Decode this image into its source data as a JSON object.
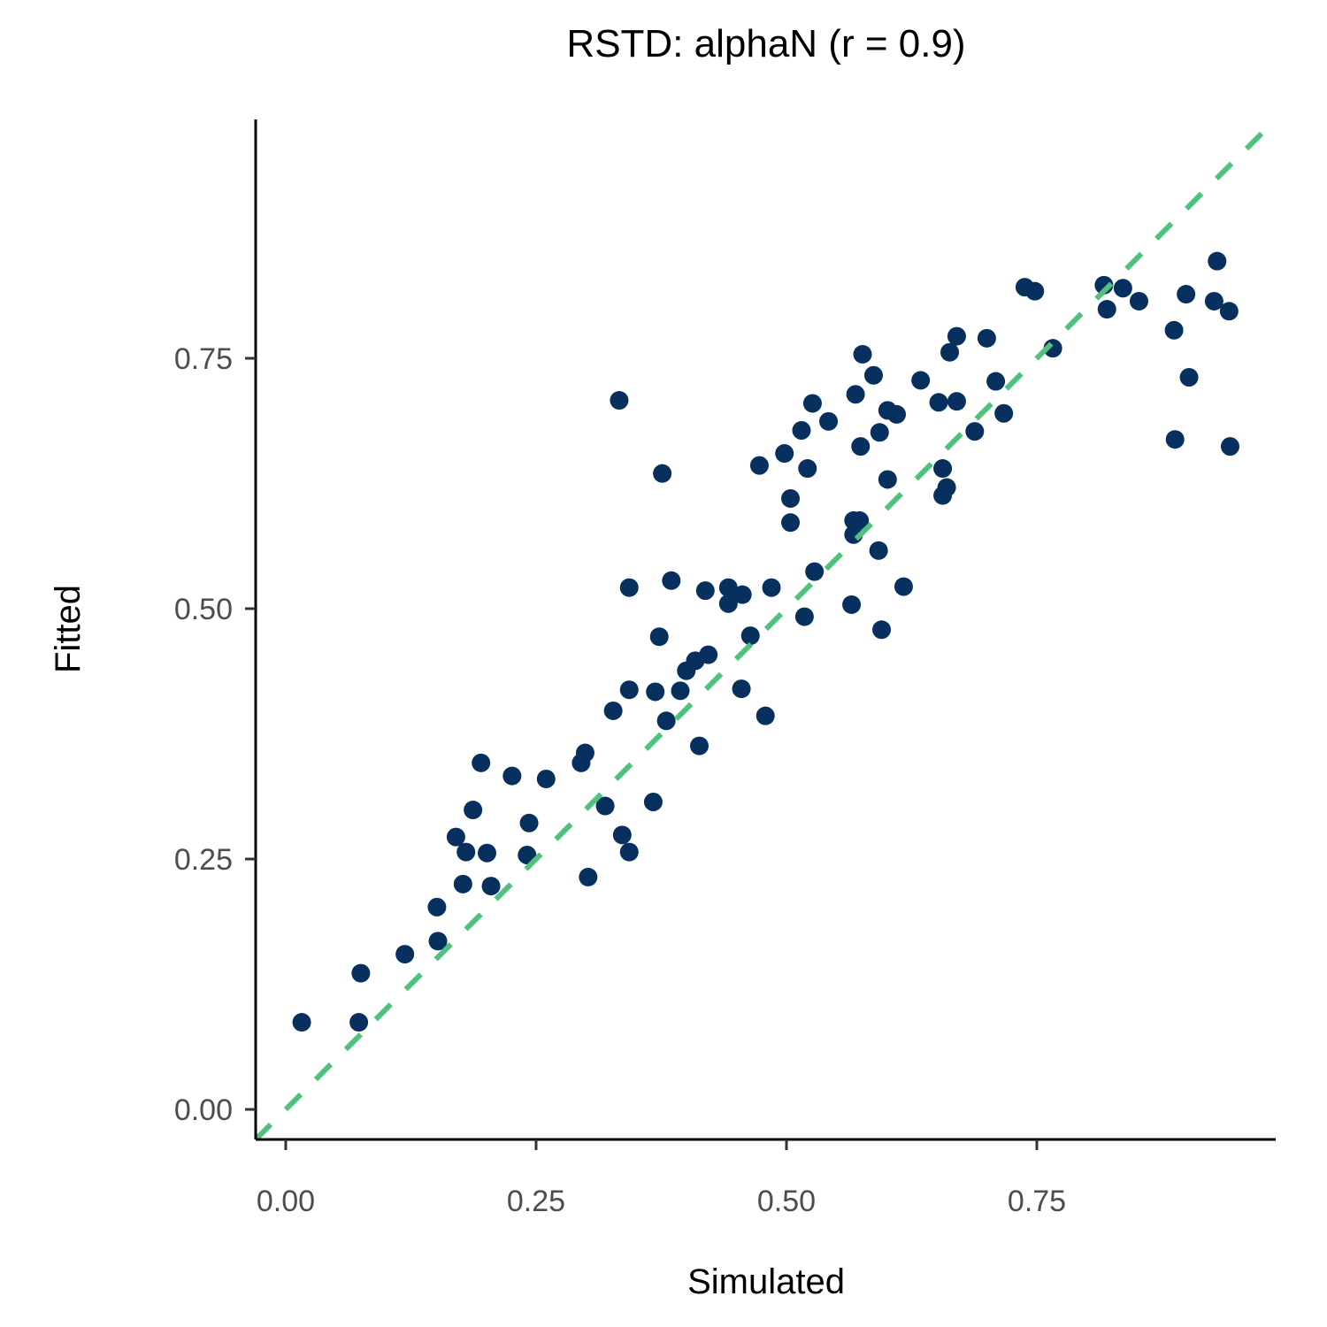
{
  "chart_data": {
    "type": "scatter",
    "title": "RSTD: alphaN (r = 0.9)",
    "xlabel": "Simulated",
    "ylabel": "Fitted",
    "xlim": [
      -0.03,
      0.9885
    ],
    "ylim": [
      -0.03,
      0.9885
    ],
    "x_ticks": [
      "0.00",
      "0.25",
      "0.50",
      "0.75"
    ],
    "y_ticks": [
      "0.00",
      "0.25",
      "0.50",
      "0.75"
    ],
    "x_tick_values": [
      0,
      0.25,
      0.5,
      0.75
    ],
    "y_tick_values": [
      0,
      0.25,
      0.5,
      0.75
    ],
    "grid": false,
    "legend": "none",
    "point_color": "#08305e",
    "reference_line": {
      "type": "identity",
      "style": "dashed",
      "color": "#52c07f"
    },
    "points": [
      [
        0.016,
        0.087
      ],
      [
        0.073,
        0.087
      ],
      [
        0.075,
        0.136
      ],
      [
        0.119,
        0.155
      ],
      [
        0.152,
        0.168
      ],
      [
        0.151,
        0.202
      ],
      [
        0.177,
        0.225
      ],
      [
        0.205,
        0.223
      ],
      [
        0.17,
        0.272
      ],
      [
        0.18,
        0.257
      ],
      [
        0.201,
        0.256
      ],
      [
        0.187,
        0.299
      ],
      [
        0.195,
        0.346
      ],
      [
        0.226,
        0.333
      ],
      [
        0.243,
        0.286
      ],
      [
        0.241,
        0.254
      ],
      [
        0.26,
        0.33
      ],
      [
        0.295,
        0.346
      ],
      [
        0.299,
        0.356
      ],
      [
        0.302,
        0.232
      ],
      [
        0.319,
        0.303
      ],
      [
        0.327,
        0.398
      ],
      [
        0.336,
        0.274
      ],
      [
        0.343,
        0.257
      ],
      [
        0.343,
        0.419
      ],
      [
        0.367,
        0.307
      ],
      [
        0.369,
        0.417
      ],
      [
        0.343,
        0.521
      ],
      [
        0.333,
        0.708
      ],
      [
        0.376,
        0.635
      ],
      [
        0.373,
        0.472
      ],
      [
        0.38,
        0.388
      ],
      [
        0.385,
        0.528
      ],
      [
        0.394,
        0.418
      ],
      [
        0.4,
        0.438
      ],
      [
        0.409,
        0.448
      ],
      [
        0.413,
        0.363
      ],
      [
        0.422,
        0.454
      ],
      [
        0.419,
        0.518
      ],
      [
        0.442,
        0.521
      ],
      [
        0.442,
        0.505
      ],
      [
        0.456,
        0.514
      ],
      [
        0.455,
        0.42
      ],
      [
        0.464,
        0.473
      ],
      [
        0.479,
        0.393
      ],
      [
        0.473,
        0.643
      ],
      [
        0.485,
        0.521
      ],
      [
        0.498,
        0.655
      ],
      [
        0.504,
        0.61
      ],
      [
        0.504,
        0.586
      ],
      [
        0.515,
        0.678
      ],
      [
        0.518,
        0.492
      ],
      [
        0.521,
        0.64
      ],
      [
        0.526,
        0.705
      ],
      [
        0.528,
        0.537
      ],
      [
        0.542,
        0.687
      ],
      [
        0.565,
        0.504
      ],
      [
        0.569,
        0.714
      ],
      [
        0.567,
        0.588
      ],
      [
        0.567,
        0.574
      ],
      [
        0.573,
        0.588
      ],
      [
        0.576,
        0.754
      ],
      [
        0.574,
        0.662
      ],
      [
        0.587,
        0.733
      ],
      [
        0.592,
        0.558
      ],
      [
        0.593,
        0.676
      ],
      [
        0.595,
        0.479
      ],
      [
        0.601,
        0.629
      ],
      [
        0.601,
        0.698
      ],
      [
        0.61,
        0.694
      ],
      [
        0.617,
        0.522
      ],
      [
        0.634,
        0.728
      ],
      [
        0.652,
        0.706
      ],
      [
        0.656,
        0.64
      ],
      [
        0.656,
        0.613
      ],
      [
        0.66,
        0.621
      ],
      [
        0.663,
        0.756
      ],
      [
        0.67,
        0.707
      ],
      [
        0.67,
        0.772
      ],
      [
        0.688,
        0.677
      ],
      [
        0.7,
        0.77
      ],
      [
        0.709,
        0.727
      ],
      [
        0.717,
        0.695
      ],
      [
        0.738,
        0.821
      ],
      [
        0.748,
        0.817
      ],
      [
        0.766,
        0.76
      ],
      [
        0.817,
        0.823
      ],
      [
        0.82,
        0.799
      ],
      [
        0.836,
        0.82
      ],
      [
        0.852,
        0.807
      ],
      [
        0.887,
        0.778
      ],
      [
        0.888,
        0.669
      ],
      [
        0.899,
        0.814
      ],
      [
        0.902,
        0.731
      ],
      [
        0.927,
        0.807
      ],
      [
        0.93,
        0.847
      ],
      [
        0.942,
        0.797
      ],
      [
        0.943,
        0.662
      ]
    ]
  }
}
